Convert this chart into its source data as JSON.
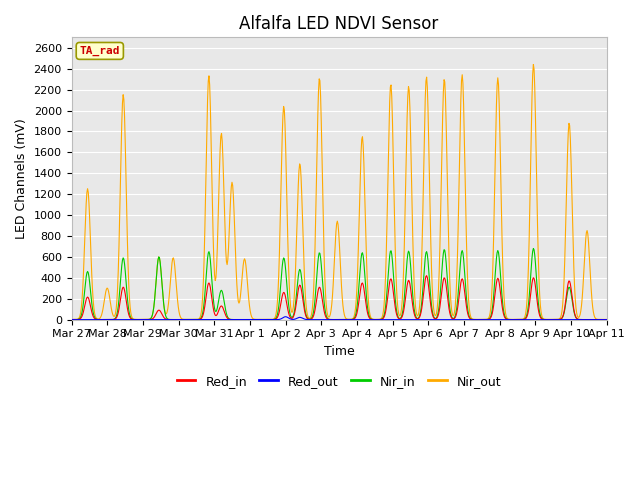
{
  "title": "Alfalfa LED NDVI Sensor",
  "xlabel": "Time",
  "ylabel": "LED Channels (mV)",
  "ylim": [
    0,
    2700
  ],
  "yticks": [
    0,
    200,
    400,
    600,
    800,
    1000,
    1200,
    1400,
    1600,
    1800,
    2000,
    2200,
    2400,
    2600
  ],
  "xtick_labels": [
    "Mar 27",
    "Mar 28",
    "Mar 29",
    "Mar 30",
    "Mar 31",
    "Apr 1",
    "Apr 2",
    "Apr 3",
    "Apr 4",
    "Apr 5",
    "Apr 6",
    "Apr 7",
    "Apr 8",
    "Apr 9",
    "Apr 10",
    "Apr 11"
  ],
  "legend_label": "TA_rad",
  "colors": {
    "Red_in": "#ff0000",
    "Red_out": "#0000ff",
    "Nir_in": "#00cc00",
    "Nir_out": "#ffaa00"
  },
  "fig_bg_color": "#ffffff",
  "plot_bg_color": "#e8e8e8",
  "grid_color": "#ffffff",
  "title_fontsize": 12,
  "axis_label_fontsize": 9,
  "tick_fontsize": 8
}
